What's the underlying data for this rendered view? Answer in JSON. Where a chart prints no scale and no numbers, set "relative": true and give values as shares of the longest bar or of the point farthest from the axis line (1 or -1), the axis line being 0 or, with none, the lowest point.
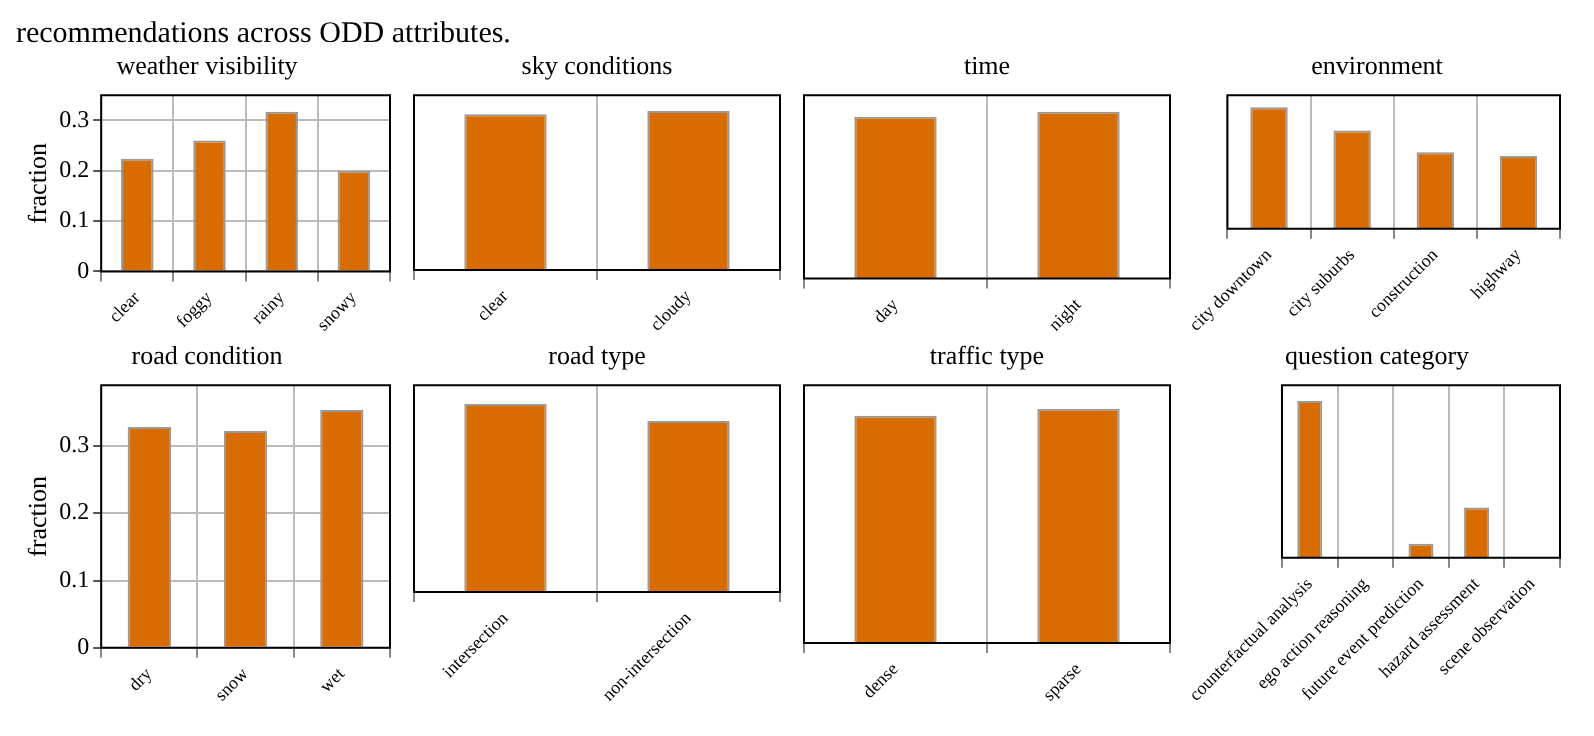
{
  "chart_data": [
    {
      "type": "bar",
      "title": "weather visibility",
      "ylabel": "fraction",
      "annotations": [
        "recommendations across ODD attributes."
      ],
      "categories": [
        "clear",
        "foggy",
        "rainy",
        "snowy"
      ],
      "values": [
        0.224,
        0.26,
        0.317,
        0.2
      ],
      "color": "#d96c00",
      "ylim": [
        0,
        0.35
      ],
      "yticks": [
        0,
        0.1,
        0.2,
        0.3
      ],
      "grid": true
    },
    {
      "type": "bar",
      "title": "sky conditions",
      "categories": [
        "clear",
        "cloudy"
      ],
      "values": [
        0.98,
        1
      ],
      "color": "#d96c00",
      "relative": true,
      "grid": "x"
    },
    {
      "type": "bar",
      "title": "time",
      "categories": [
        "day",
        "night"
      ],
      "values": [
        0.97,
        1
      ],
      "color": "#d96c00",
      "relative": true,
      "grid": "x"
    },
    {
      "type": "bar",
      "title": "environment",
      "categories": [
        "city downtown",
        "city suburbs",
        "construction",
        "highway"
      ],
      "values": [
        1,
        0.81,
        0.63,
        0.6
      ],
      "color": "#d96c00",
      "relative": true,
      "grid": "x"
    },
    {
      "type": "bar",
      "title": "road condition",
      "ylabel": "fraction",
      "categories": [
        "dry",
        "snow",
        "wet"
      ],
      "values": [
        0.328,
        0.322,
        0.353
      ],
      "color": "#d96c00",
      "ylim": [
        0,
        0.39
      ],
      "yticks": [
        0,
        0.1,
        0.2,
        0.3
      ],
      "grid": true
    },
    {
      "type": "bar",
      "title": "road type",
      "categories": [
        "intersection",
        "non-intersection"
      ],
      "values": [
        1,
        0.91
      ],
      "color": "#d96c00",
      "relative": true,
      "grid": "x"
    },
    {
      "type": "bar",
      "title": "traffic type",
      "categories": [
        "dense",
        "sparse"
      ],
      "values": [
        0.97,
        1
      ],
      "color": "#d96c00",
      "relative": true,
      "grid": "x"
    },
    {
      "type": "bar",
      "title": "question category",
      "categories": [
        "counterfactual analysis",
        "ego action reasoning",
        "future event prediction",
        "hazard assessment",
        "scene observation"
      ],
      "values": [
        1,
        0,
        0.09,
        0.32,
        0
      ],
      "color": "#d96c00",
      "relative": true,
      "grid": "x"
    }
  ]
}
